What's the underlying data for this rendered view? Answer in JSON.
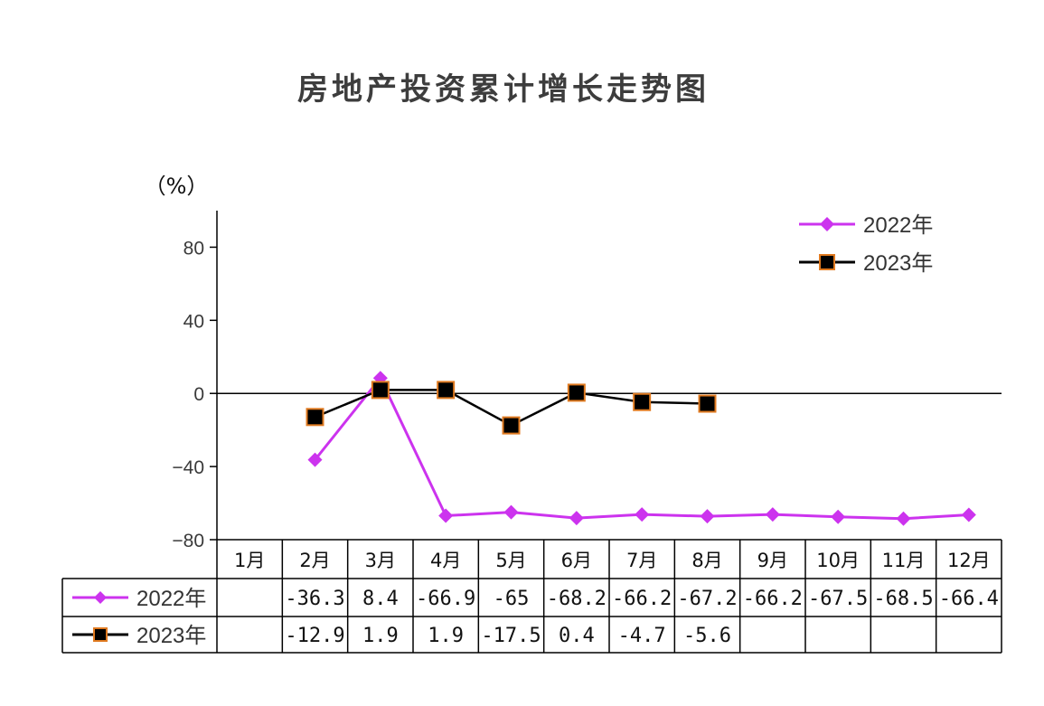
{
  "chart_data": {
    "type": "line",
    "title": "房地产投资累计增长走势图",
    "ylabel": "（%）",
    "ylim": [
      -80,
      100
    ],
    "yticks": [
      -80,
      -40,
      0,
      40,
      80
    ],
    "categories": [
      "1月",
      "2月",
      "3月",
      "4月",
      "5月",
      "6月",
      "7月",
      "8月",
      "9月",
      "10月",
      "11月",
      "12月"
    ],
    "series": [
      {
        "name": "2022年",
        "color": "#cc33ee",
        "marker": "diamond",
        "values": [
          null,
          -36.3,
          8.4,
          -66.9,
          -65,
          -68.2,
          -66.2,
          -67.2,
          -66.2,
          -67.5,
          -68.5,
          -66.4
        ],
        "labels": [
          "",
          "-36.3",
          "8.4",
          "-66.9",
          "-65",
          "-68.2",
          "-66.2",
          "-67.2",
          "-66.2",
          "-67.5",
          "-68.5",
          "-66.4"
        ]
      },
      {
        "name": "2023年",
        "color": "#000000",
        "marker_border": "#e07a20",
        "marker": "square",
        "values": [
          null,
          -12.9,
          1.9,
          1.9,
          -17.5,
          0.4,
          -4.7,
          -5.6,
          null,
          null,
          null,
          null
        ],
        "labels": [
          "",
          "-12.9",
          "1.9",
          "1.9",
          "-17.5",
          "0.4",
          "-4.7",
          "-5.6",
          "",
          "",
          "",
          ""
        ]
      }
    ],
    "legend_position": "top-right",
    "grid": false,
    "data_table": true
  }
}
